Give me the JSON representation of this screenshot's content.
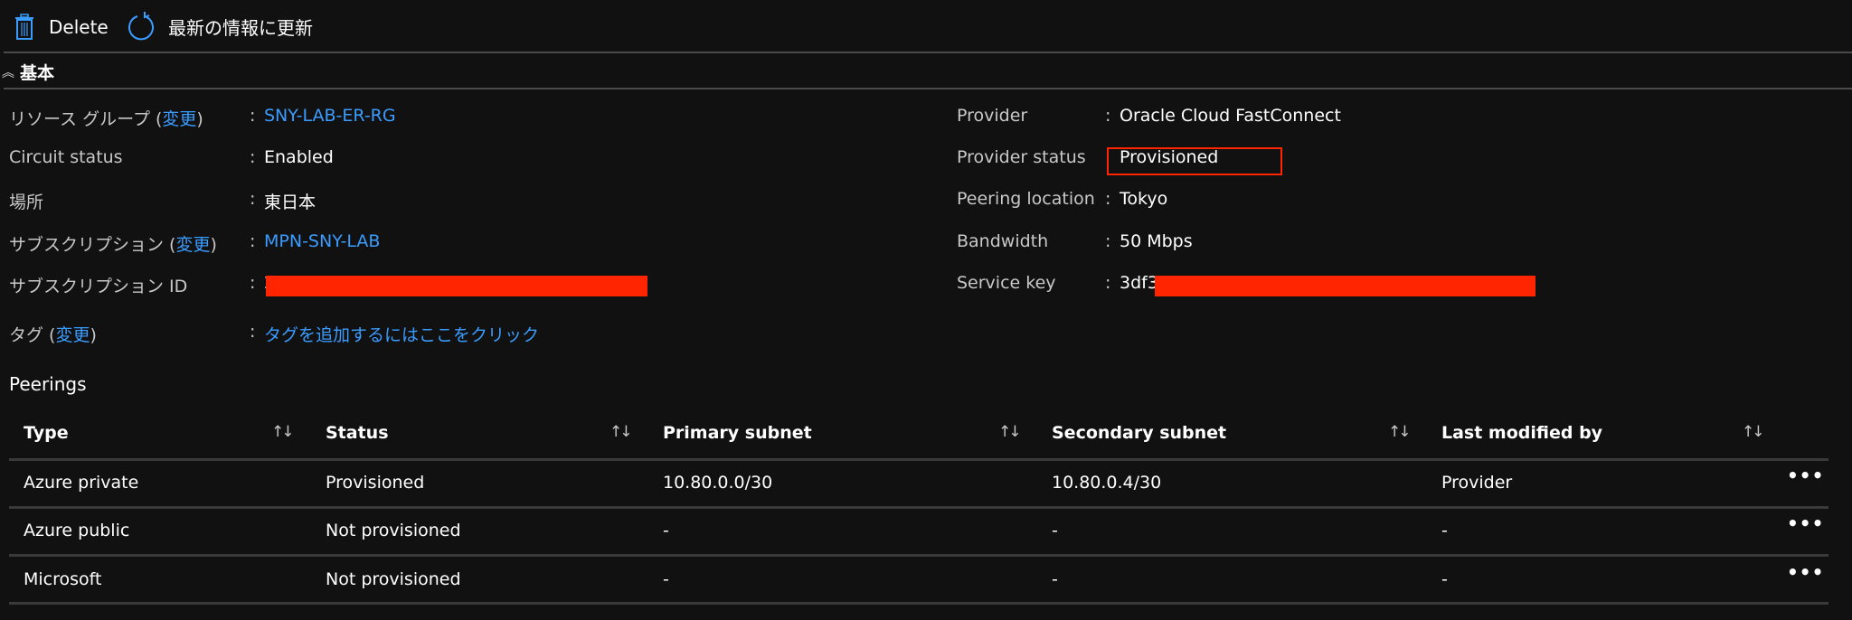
{
  "toolbar": {
    "delete_label": "Delete",
    "refresh_label": "最新の情報に更新",
    "icons": {
      "delete": "trash-icon",
      "refresh": "refresh-icon"
    },
    "accent": "#3b9cff"
  },
  "section": {
    "title": "基本",
    "icon": "chevron-double-up-icon"
  },
  "essentials_left": [
    {
      "label": "リソース グループ",
      "change": "変更",
      "value": "SNY-LAB-ER-RG",
      "link": true
    },
    {
      "label": "Circuit status",
      "value": "Enabled"
    },
    {
      "label": "場所",
      "value": "東日本"
    },
    {
      "label": "サブスクリプション",
      "change": "変更",
      "value": "MPN-SNY-LAB",
      "link": true
    },
    {
      "label": "サブスクリプション ID",
      "value": "2"
    },
    {
      "label": "タグ",
      "change": "変更",
      "value": "タグを追加するにはここをクリック",
      "link": true
    }
  ],
  "essentials_right": [
    {
      "label": "Provider",
      "value": "Oracle Cloud FastConnect"
    },
    {
      "label": "Provider status",
      "value": "Provisioned",
      "highlight": "#ff2500"
    },
    {
      "label": "Peering location",
      "value": "Tokyo"
    },
    {
      "label": "Bandwidth",
      "value": "50 Mbps"
    },
    {
      "label": "Service key",
      "value": "3df3"
    }
  ],
  "redaction_color": "#ff2500",
  "peerings": {
    "title": "Peerings",
    "columns": [
      "Type",
      "Status",
      "Primary subnet",
      "Secondary subnet",
      "Last modified by"
    ],
    "sort_icon": "↑↓",
    "more_icon": "•••",
    "rows": [
      [
        "Azure private",
        "Provisioned",
        "10.80.0.0/30",
        "10.80.0.4/30",
        "Provider"
      ],
      [
        "Azure public",
        "Not provisioned",
        "-",
        "-",
        "-"
      ],
      [
        "Microsoft",
        "Not provisioned",
        "-",
        "-",
        "-"
      ]
    ]
  }
}
